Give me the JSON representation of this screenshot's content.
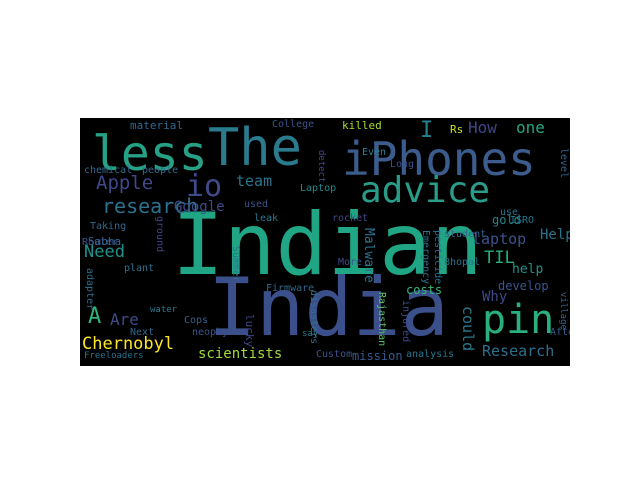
{
  "words": [
    {
      "text": "Indian",
      "color": "#21a685"
    },
    {
      "text": "India",
      "color": "#3b4f8a"
    },
    {
      "text": "The",
      "color": "#2a7b8e"
    },
    {
      "text": "less",
      "color": "#26a185"
    },
    {
      "text": "iPhones",
      "color": "#3b5c8c"
    },
    {
      "text": "advice",
      "color": "#2a9d8a"
    },
    {
      "text": "pin",
      "color": "#2ab07f"
    },
    {
      "text": "io",
      "color": "#3e4a89"
    },
    {
      "text": "research",
      "color": "#2c728e"
    },
    {
      "text": "Apple",
      "color": "#3f4889"
    },
    {
      "text": "Chernobyl",
      "color": "#fde725"
    },
    {
      "text": "scientists",
      "color": "#a0da39"
    },
    {
      "text": "Research",
      "color": "#2d708e"
    },
    {
      "text": "Need",
      "color": "#21918c"
    },
    {
      "text": "team",
      "color": "#2c738e"
    },
    {
      "text": "laptop",
      "color": "#3b528b"
    },
    {
      "text": "Google",
      "color": "#3e4c8a"
    },
    {
      "text": "How",
      "color": "#414487"
    },
    {
      "text": "one",
      "color": "#22a884"
    },
    {
      "text": "TIL",
      "color": "#27ad81"
    },
    {
      "text": "Help",
      "color": "#2c738e"
    },
    {
      "text": "help",
      "color": "#21918c"
    },
    {
      "text": "Why",
      "color": "#3e4989"
    },
    {
      "text": "develop",
      "color": "#39568c"
    },
    {
      "text": "could",
      "color": "#2a788e"
    },
    {
      "text": "Are",
      "color": "#3e4a89"
    },
    {
      "text": "A",
      "color": "#2fb47c"
    },
    {
      "text": "mission",
      "color": "#38598c"
    },
    {
      "text": "Malware",
      "color": "#2c728e"
    },
    {
      "text": "costs",
      "color": "#35b779"
    },
    {
      "text": "gold",
      "color": "#26828e"
    },
    {
      "text": "material",
      "color": "#31688e"
    },
    {
      "text": "chemical",
      "color": "#306a8e"
    },
    {
      "text": "people",
      "color": "#2f6c8e"
    },
    {
      "text": "Sabha",
      "color": "#306a8e"
    },
    {
      "text": "Router",
      "color": "#3b528b"
    },
    {
      "text": "plant",
      "color": "#2d708e"
    },
    {
      "text": "adapter",
      "color": "#2e6e8e"
    },
    {
      "text": "Next",
      "color": "#31688e"
    },
    {
      "text": "Cops",
      "color": "#33638d"
    },
    {
      "text": "lucky",
      "color": "#3f4788"
    },
    {
      "text": "Summer",
      "color": "#2d718e"
    },
    {
      "text": "disasters",
      "color": "#2c728e"
    },
    {
      "text": "Rajasthan",
      "color": "#5ec962"
    },
    {
      "text": "Firmware",
      "color": "#31688e"
    },
    {
      "text": "Custom",
      "color": "#3b528b"
    },
    {
      "text": "analysis",
      "color": "#2a768e"
    },
    {
      "text": "After",
      "color": "#38598c"
    },
    {
      "text": "Bhopal",
      "color": "#2c728e"
    },
    {
      "text": "student",
      "color": "#33638d"
    },
    {
      "text": "ISRO",
      "color": "#2a788e"
    },
    {
      "text": "Rs",
      "color": "#c8e020"
    },
    {
      "text": "killed",
      "color": "#a8db34"
    },
    {
      "text": "College",
      "color": "#3a548c"
    },
    {
      "text": "Emergency",
      "color": "#2e6f8e"
    },
    {
      "text": "pesticide",
      "color": "#2f6c8e"
    },
    {
      "text": "More",
      "color": "#3e4a89"
    },
    {
      "text": "leak",
      "color": "#2a788e"
    },
    {
      "text": "rocket",
      "color": "#3f4889"
    },
    {
      "text": "used",
      "color": "#3b528b"
    },
    {
      "text": "Laptop",
      "color": "#23898e"
    },
    {
      "text": "level",
      "color": "#33638d"
    },
    {
      "text": "Long",
      "color": "#3d4e8a"
    },
    {
      "text": "Even",
      "color": "#26828e"
    },
    {
      "text": "ground",
      "color": "#3f4788"
    },
    {
      "text": "use",
      "color": "#2c738e"
    },
    {
      "text": "Taking",
      "color": "#31688e"
    },
    {
      "text": "water",
      "color": "#2a788e"
    },
    {
      "text": "neophyte",
      "color": "#3b528b"
    },
    {
      "text": "Freeloaders",
      "color": "#2c728e"
    },
    {
      "text": "village",
      "color": "#33638d"
    },
    {
      "text": "injured",
      "color": "#3e4a89"
    },
    {
      "text": "say",
      "color": "#2a788e"
    },
    {
      "text": "I",
      "color": "#26828e"
    },
    {
      "text": "detect",
      "color": "#3e4989"
    }
  ]
}
